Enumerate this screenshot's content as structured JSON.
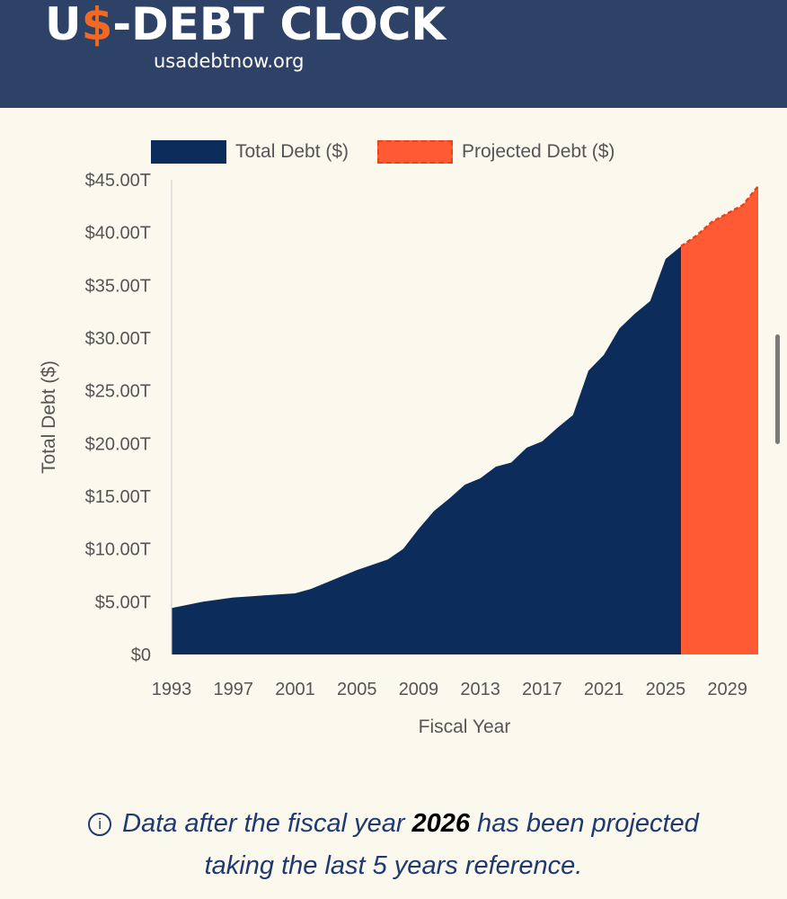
{
  "header": {
    "logo_prefix": "U",
    "logo_dollar": "$",
    "logo_suffix": "-DEBT CLOCK",
    "site": "usadebtnow.org"
  },
  "colors": {
    "header_bg": "#2e4268",
    "page_bg": "#fbf8ee",
    "total_debt": "#0c2d5c",
    "projected_debt": "#ff5a33",
    "accent_orange": "#f26a21",
    "note_text": "#1f3a70"
  },
  "note": {
    "icon": "info-icon",
    "text_before": "Data after the fiscal year ",
    "year": "2026",
    "text_line1_after": " has been projected",
    "text_line2": "taking the last 5 years reference."
  },
  "chart_data": {
    "type": "area",
    "title": "",
    "xlabel": "Fiscal Year",
    "ylabel": "Total Debt ($)",
    "ylim": [
      0,
      45
    ],
    "xlim": [
      1993,
      2031
    ],
    "x_ticks": [
      1993,
      1997,
      2001,
      2005,
      2009,
      2013,
      2017,
      2021,
      2025,
      2029
    ],
    "y_ticks": [
      0,
      5,
      10,
      15,
      20,
      25,
      30,
      35,
      40,
      45
    ],
    "y_tick_labels": [
      "$0",
      "$5.00T",
      "$10.00T",
      "$15.00T",
      "$20.00T",
      "$25.00T",
      "$30.00T",
      "$35.00T",
      "$40.00T",
      "$45.00T"
    ],
    "legend": [
      "Total Debt ($)",
      "Projected Debt ($)"
    ],
    "legend_position": "top",
    "series": [
      {
        "name": "Total Debt ($)",
        "style": "solid-area",
        "x": [
          1993,
          1994,
          1995,
          1996,
          1997,
          1998,
          1999,
          2000,
          2001,
          2002,
          2003,
          2004,
          2005,
          2006,
          2007,
          2008,
          2009,
          2010,
          2011,
          2012,
          2013,
          2014,
          2015,
          2016,
          2017,
          2018,
          2019,
          2020,
          2021,
          2022,
          2023,
          2024,
          2025,
          2026
        ],
        "values": [
          4.4,
          4.7,
          5.0,
          5.2,
          5.4,
          5.5,
          5.6,
          5.7,
          5.8,
          6.2,
          6.8,
          7.4,
          8.0,
          8.5,
          9.0,
          10.0,
          11.9,
          13.6,
          14.8,
          16.1,
          16.7,
          17.8,
          18.2,
          19.6,
          20.2,
          21.5,
          22.7,
          26.9,
          28.4,
          30.9,
          32.3,
          33.5,
          37.5,
          38.7
        ]
      },
      {
        "name": "Projected Debt ($)",
        "style": "dashed-area",
        "x": [
          2026,
          2027,
          2028,
          2029,
          2030,
          2031
        ],
        "values": [
          38.7,
          39.7,
          41.0,
          41.8,
          42.6,
          44.4
        ]
      }
    ]
  }
}
